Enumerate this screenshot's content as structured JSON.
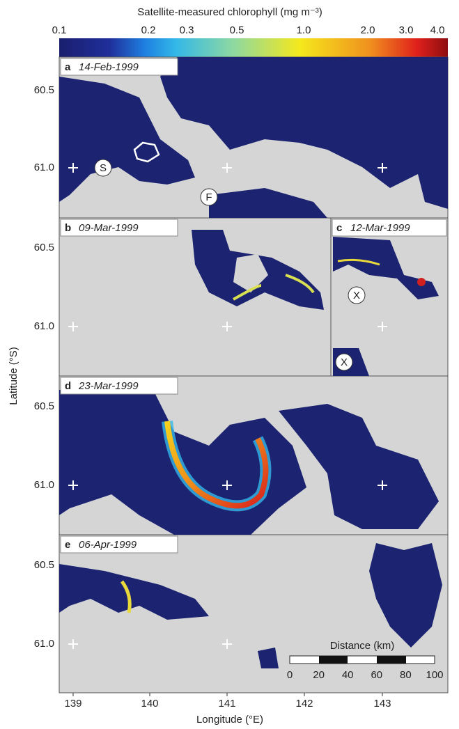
{
  "colorbar": {
    "title": "Satellite-measured chlorophyll (mg m⁻³)",
    "tick_labels": [
      "0.1",
      "0.2",
      "0.3",
      "0.5",
      "1.0",
      "2.0",
      "3.0",
      "4.0"
    ]
  },
  "panels": [
    {
      "letter": "a",
      "date": "14-Feb-1999"
    },
    {
      "letter": "b",
      "date": "09-Mar-1999"
    },
    {
      "letter": "c",
      "date": "12-Mar-1999"
    },
    {
      "letter": "d",
      "date": "23-Mar-1999"
    },
    {
      "letter": "e",
      "date": "06-Apr-1999"
    }
  ],
  "markers": {
    "s": "S",
    "f": "F",
    "x1": "X",
    "x2": "X"
  },
  "y_axis": {
    "label": "Latitude (°S)",
    "tick_labels": [
      "60.5",
      "61.0"
    ]
  },
  "x_axis": {
    "label": "Longitude (°E)",
    "tick_labels": [
      "139",
      "140",
      "141",
      "142",
      "143"
    ]
  },
  "scale_bar": {
    "title": "Distance (km)",
    "tick_labels": [
      "0",
      "20",
      "40",
      "60",
      "80",
      "100"
    ]
  }
}
